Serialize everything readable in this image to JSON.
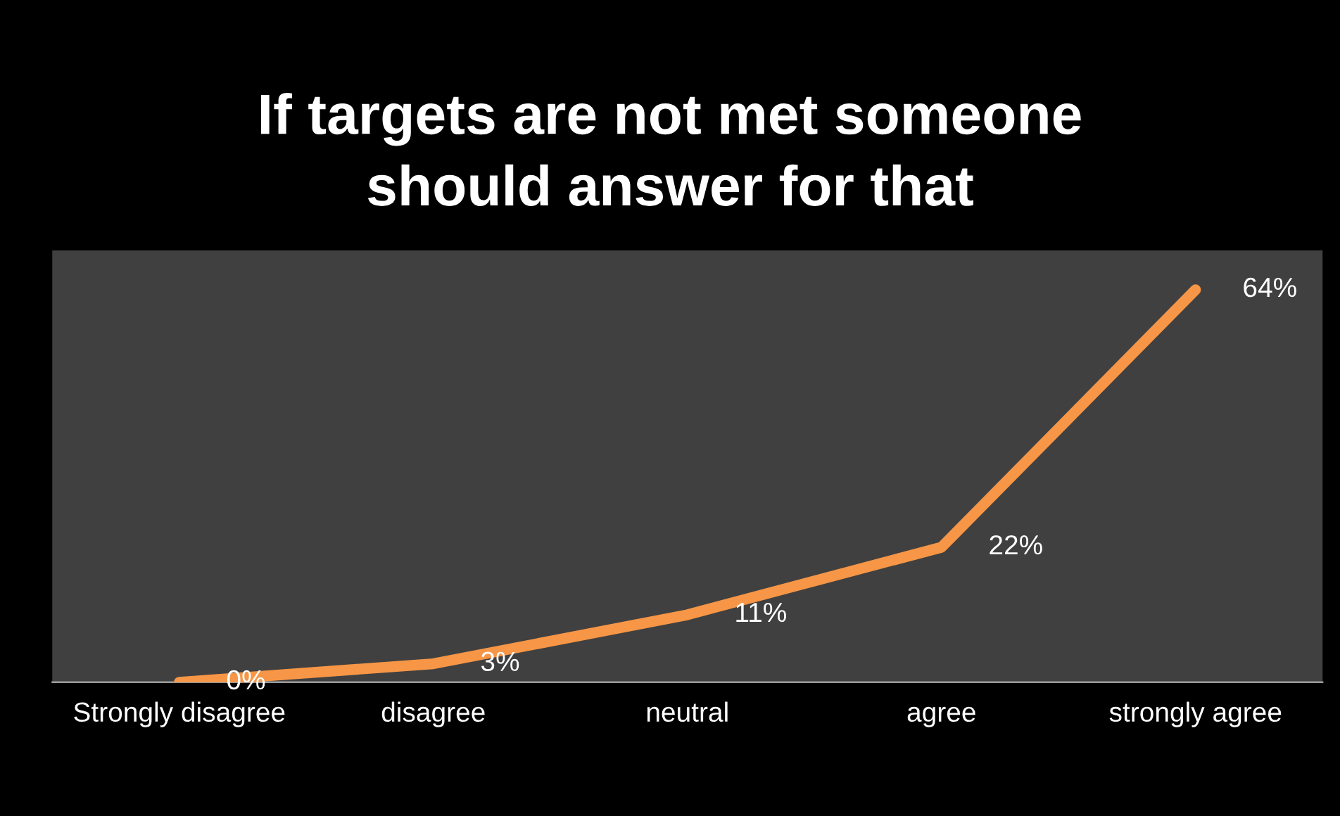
{
  "chart_data": {
    "type": "line",
    "title": "If targets are not met someone\nshould answer for that",
    "categories": [
      "Strongly disagree",
      "disagree",
      "neutral",
      "agree",
      "strongly agree"
    ],
    "series": [
      {
        "color": "#f79646",
        "values": [
          0,
          3,
          11,
          22,
          64
        ],
        "value_labels": [
          "0%",
          "3%",
          "11%",
          "22%",
          "64%"
        ]
      }
    ],
    "grid": false,
    "marker": "none",
    "line_style": "solid",
    "tick_labels": "x"
  }
}
